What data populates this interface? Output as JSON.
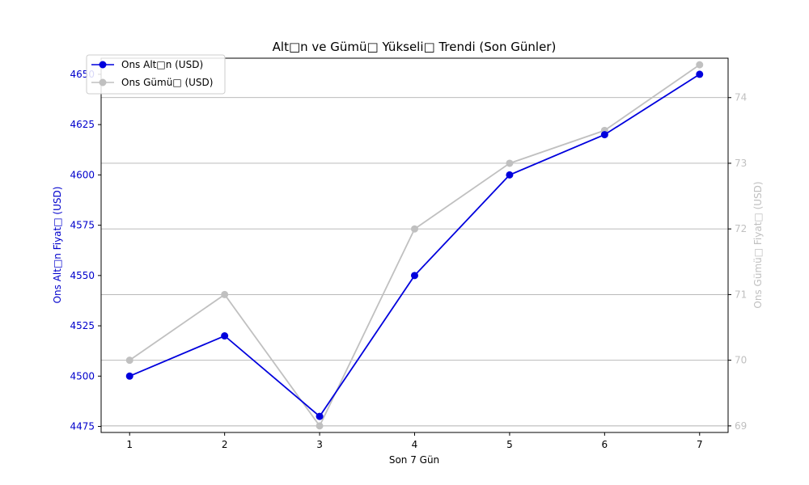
{
  "chart_data": {
    "type": "line",
    "title": "Alt□n ve Gümü□ Yükseli□ Trendi (Son Günler)",
    "xlabel": "Son 7 Gün",
    "ylabel_left": "Ons Alt□n Fiyat□ (USD)",
    "ylabel_right": "Ons Gümü□ Fiyat□ (USD)",
    "x": [
      1,
      2,
      3,
      4,
      5,
      6,
      7
    ],
    "x_ticks": [
      "1",
      "2",
      "3",
      "4",
      "5",
      "6",
      "7"
    ],
    "xlim": [
      0.7,
      7.3
    ],
    "ylim_left": [
      4472,
      4658
    ],
    "ylim_right": [
      68.9,
      74.6
    ],
    "yticks_left": [
      4475,
      4500,
      4525,
      4550,
      4575,
      4600,
      4625,
      4650
    ],
    "yticks_right": [
      69,
      70,
      71,
      72,
      73,
      74
    ],
    "grid": "horizontal lines at right-axis ticks",
    "legend_position": "top-left",
    "series": [
      {
        "name": "Ons Alt□n (USD)",
        "axis": "left",
        "color": "#0000dd",
        "values": [
          4500,
          4520,
          4480,
          4550,
          4600,
          4620,
          4650
        ]
      },
      {
        "name": "Ons Gümü□ (USD)",
        "axis": "right",
        "color": "#c0c0c0",
        "values": [
          70,
          71,
          69,
          72,
          73,
          73.5,
          74.5
        ]
      }
    ],
    "colors": {
      "left_axis": "#0000cc",
      "right_axis": "#c0c0c0",
      "grid": "#b0b0b0"
    }
  }
}
